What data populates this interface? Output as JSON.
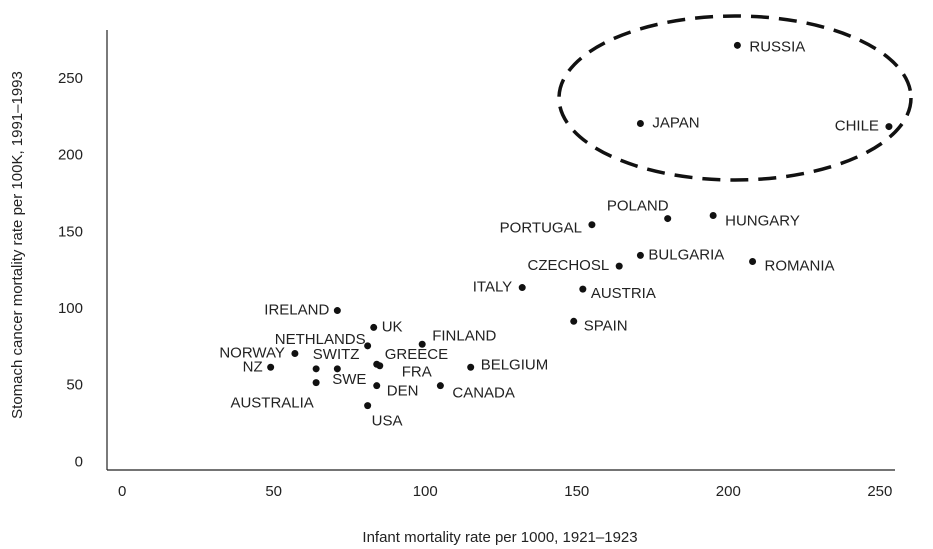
{
  "chart_data": {
    "type": "scatter",
    "x_label": "Infant mortality rate per 1000, 1921–1923",
    "y_label": "Stomach cancer mortality rate per 100K, 1991–1993",
    "xlim": [
      -5,
      255
    ],
    "ylim": [
      -5,
      282
    ],
    "xticks": [
      0,
      50,
      100,
      150,
      200,
      250
    ],
    "yticks": [
      0,
      50,
      100,
      150,
      200,
      250
    ],
    "color": "#111111",
    "labels": [
      "RUSSIA",
      "JAPAN",
      "CHILE",
      "POLAND",
      "HUNGARY",
      "PORTUGAL",
      "CZECHOSL",
      "BULGARIA",
      "ROMANIA",
      "ITALY",
      "AUSTRIA",
      "SPAIN",
      "IRELAND",
      "UK",
      "NETHLANDS",
      "FINLAND",
      "NORWAY",
      "SWITZ",
      "SWE",
      "AUSTRALIA",
      "GREECE",
      "FRA",
      "DEN",
      "USA",
      "NZ",
      "BELGIUM",
      "CANADA"
    ],
    "x": [
      203,
      171,
      253,
      180,
      195,
      155,
      164,
      171,
      208,
      132,
      152,
      149,
      71,
      83,
      81,
      99,
      57,
      64,
      71,
      64,
      84,
      85,
      84,
      81,
      49,
      115,
      105
    ],
    "values": [
      272,
      221,
      219,
      159,
      161,
      155,
      128,
      135,
      131,
      114,
      113,
      92,
      99,
      88,
      76,
      77,
      71,
      61,
      61,
      52,
      64,
      63,
      50,
      37,
      62,
      62,
      50
    ]
  }
}
